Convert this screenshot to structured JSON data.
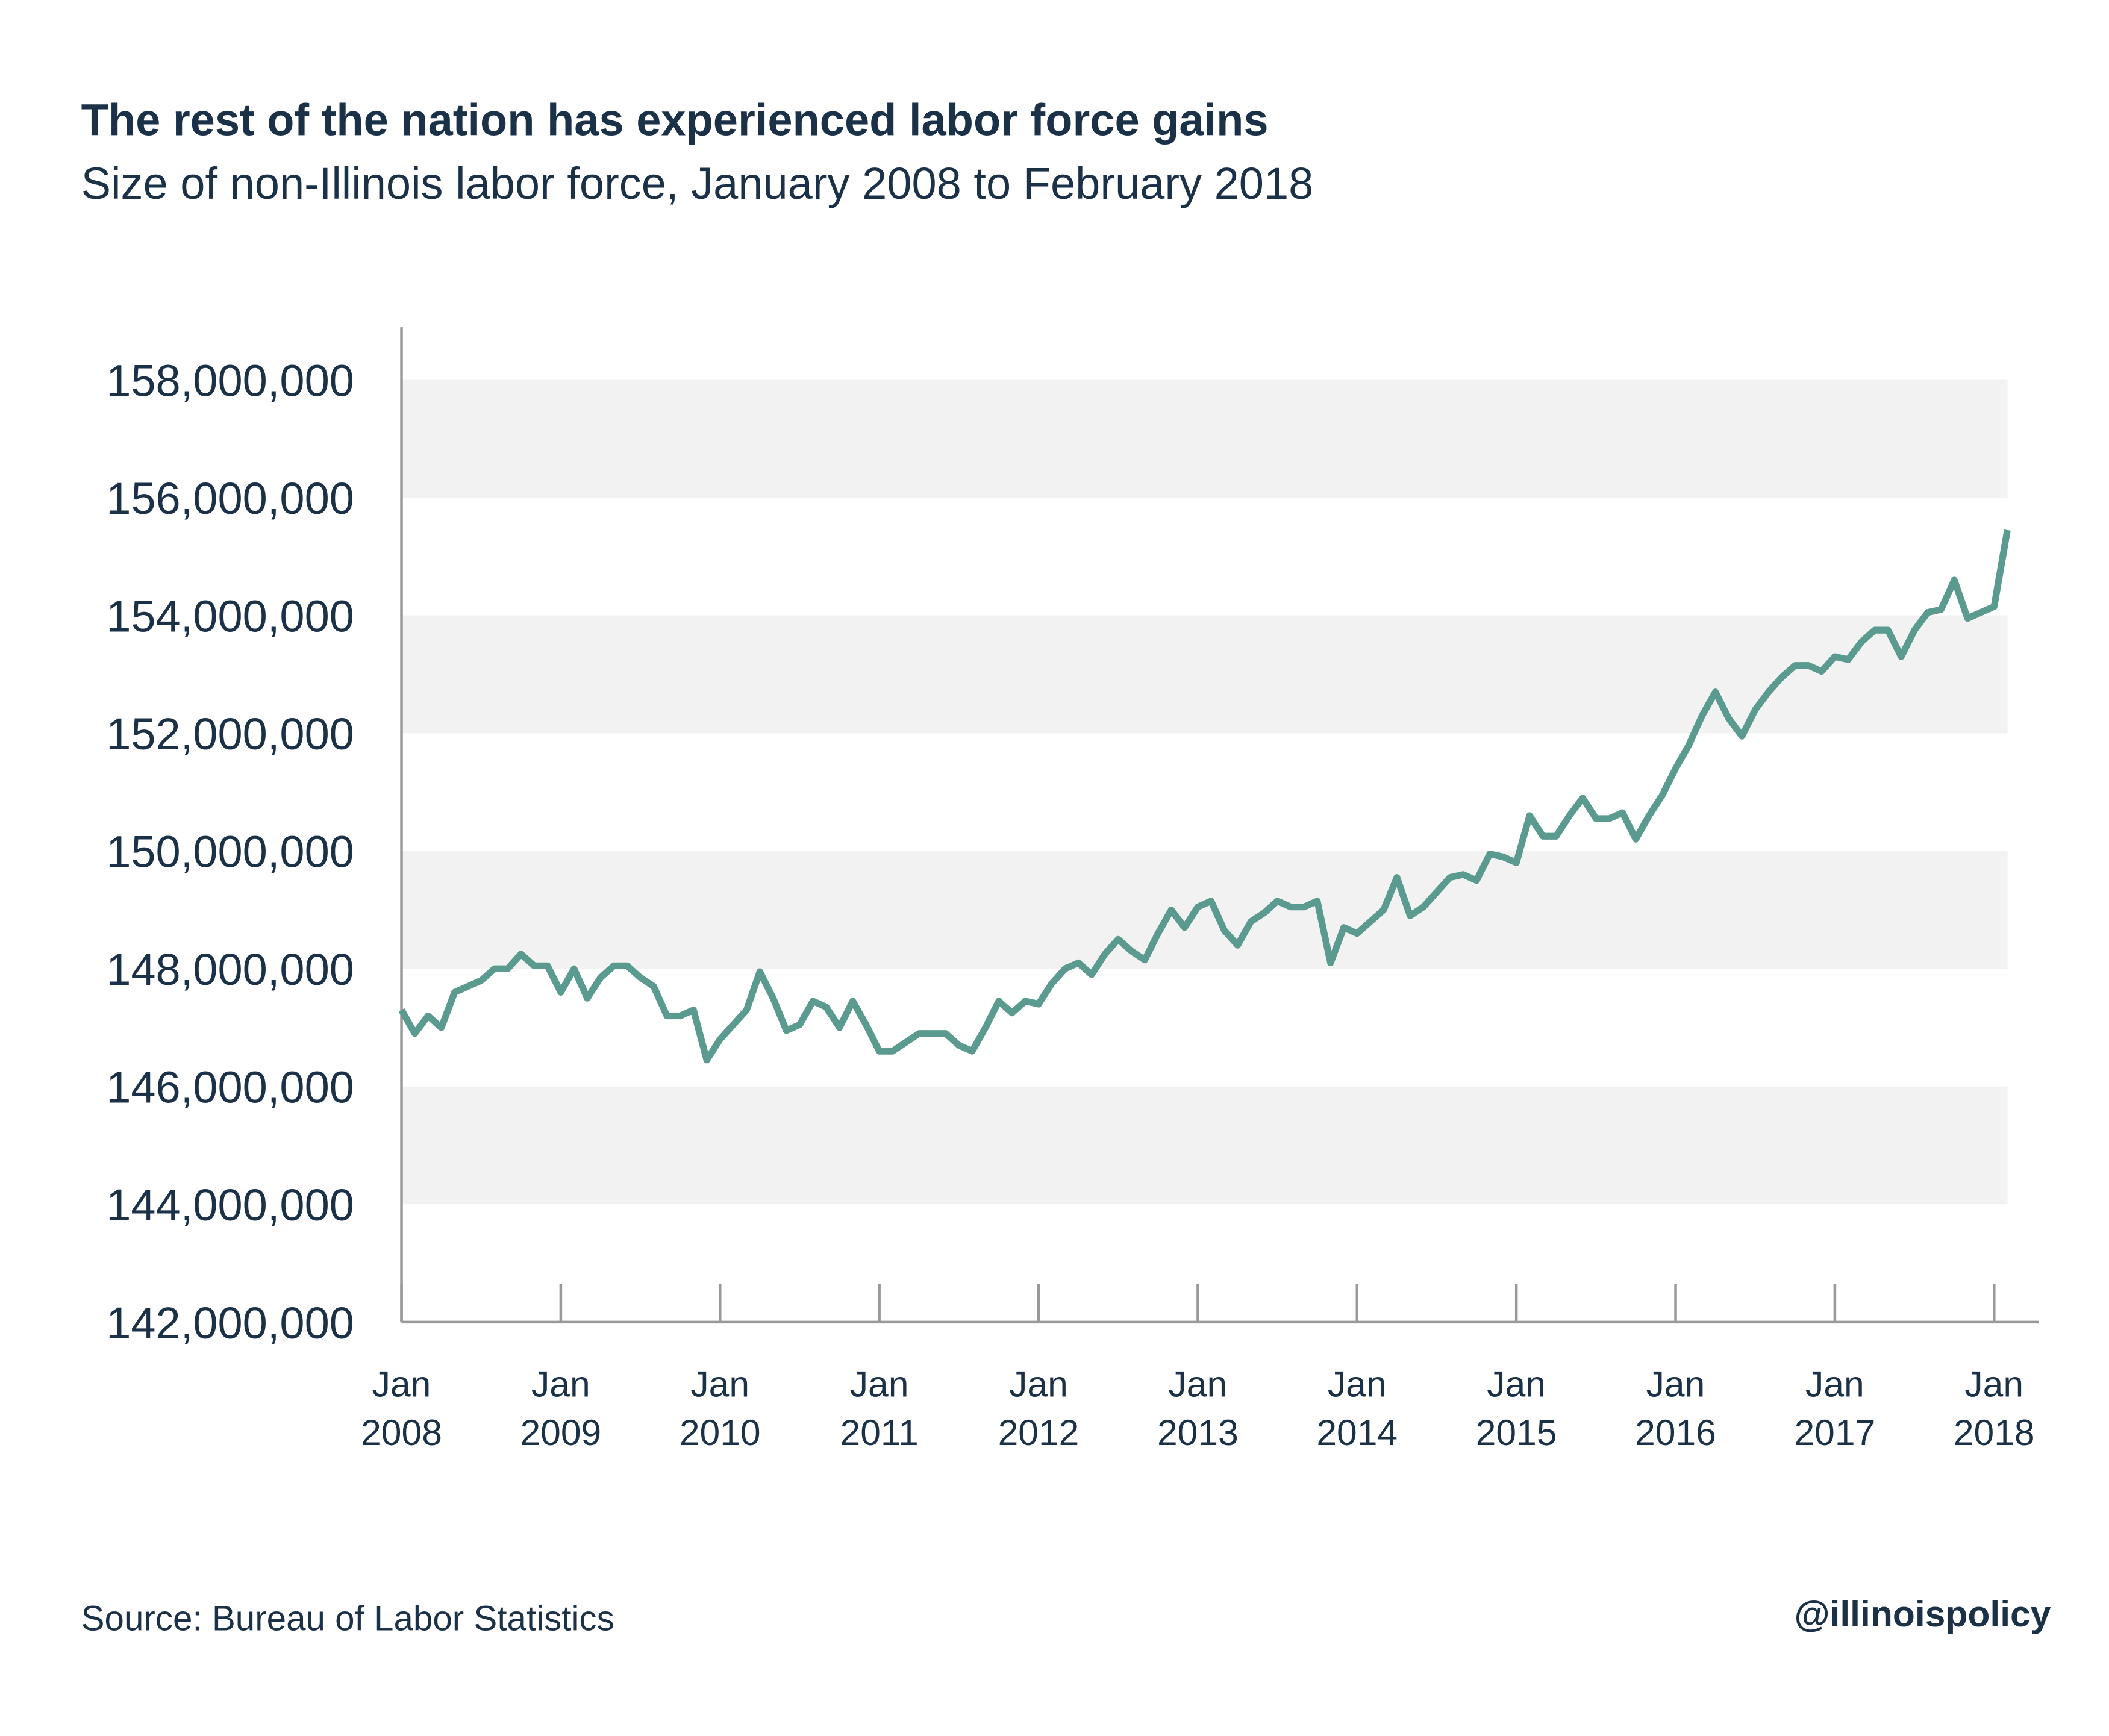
{
  "chart_data": {
    "type": "line",
    "title": "The rest of the nation has experienced labor force gains",
    "subtitle": "Size of non-Illinois labor force, January 2008 to February 2018",
    "source": "Source: Bureau of Labor Statistics",
    "credit": "@illinoispolicy",
    "x": [
      "2008-01",
      "2008-02",
      "2008-03",
      "2008-04",
      "2008-05",
      "2008-06",
      "2008-07",
      "2008-08",
      "2008-09",
      "2008-10",
      "2008-11",
      "2008-12",
      "2009-01",
      "2009-02",
      "2009-03",
      "2009-04",
      "2009-05",
      "2009-06",
      "2009-07",
      "2009-08",
      "2009-09",
      "2009-10",
      "2009-11",
      "2009-12",
      "2010-01",
      "2010-02",
      "2010-03",
      "2010-04",
      "2010-05",
      "2010-06",
      "2010-07",
      "2010-08",
      "2010-09",
      "2010-10",
      "2010-11",
      "2010-12",
      "2011-01",
      "2011-02",
      "2011-03",
      "2011-04",
      "2011-05",
      "2011-06",
      "2011-07",
      "2011-08",
      "2011-09",
      "2011-10",
      "2011-11",
      "2011-12",
      "2012-01",
      "2012-02",
      "2012-03",
      "2012-04",
      "2012-05",
      "2012-06",
      "2012-07",
      "2012-08",
      "2012-09",
      "2012-10",
      "2012-11",
      "2012-12",
      "2013-01",
      "2013-02",
      "2013-03",
      "2013-04",
      "2013-05",
      "2013-06",
      "2013-07",
      "2013-08",
      "2013-09",
      "2013-10",
      "2013-11",
      "2013-12",
      "2014-01",
      "2014-02",
      "2014-03",
      "2014-04",
      "2014-05",
      "2014-06",
      "2014-07",
      "2014-08",
      "2014-09",
      "2014-10",
      "2014-11",
      "2014-12",
      "2015-01",
      "2015-02",
      "2015-03",
      "2015-04",
      "2015-05",
      "2015-06",
      "2015-07",
      "2015-08",
      "2015-09",
      "2015-10",
      "2015-11",
      "2015-12",
      "2016-01",
      "2016-02",
      "2016-03",
      "2016-04",
      "2016-05",
      "2016-06",
      "2016-07",
      "2016-08",
      "2016-09",
      "2016-10",
      "2016-11",
      "2016-12",
      "2017-01",
      "2017-02",
      "2017-03",
      "2017-04",
      "2017-05",
      "2017-06",
      "2017-07",
      "2017-08",
      "2017-09",
      "2017-10",
      "2017-11",
      "2017-12",
      "2018-01",
      "2018-02"
    ],
    "series": [
      {
        "name": "Non-Illinois labor force",
        "color": "#5b9a8f",
        "values": [
          147300000,
          146900000,
          147200000,
          147000000,
          147600000,
          147700000,
          147800000,
          148000000,
          148000000,
          148250000,
          148050000,
          148050000,
          147600000,
          148000000,
          147500000,
          147850000,
          148050000,
          148050000,
          147850000,
          147700000,
          147200000,
          147200000,
          147300000,
          146450000,
          146800000,
          147050000,
          147300000,
          147950000,
          147500000,
          146950000,
          147050000,
          147450000,
          147350000,
          147000000,
          147450000,
          147050000,
          146600000,
          146600000,
          146750000,
          146900000,
          146900000,
          146900000,
          146700000,
          146600000,
          147000000,
          147450000,
          147250000,
          147450000,
          147400000,
          147750000,
          148000000,
          148100000,
          147900000,
          148250000,
          148500000,
          148300000,
          148150000,
          148600000,
          149000000,
          148700000,
          149050000,
          149150000,
          148650000,
          148400000,
          148800000,
          148950000,
          149150000,
          149050000,
          149050000,
          149150000,
          148100000,
          148700000,
          148600000,
          148800000,
          149000000,
          149550000,
          148900000,
          149050000,
          149300000,
          149550000,
          149600000,
          149500000,
          149950000,
          149900000,
          149800000,
          150600000,
          150250000,
          150250000,
          150600000,
          150900000,
          150550000,
          150550000,
          150650000,
          150200000,
          150600000,
          150950000,
          151400000,
          151800000,
          152300000,
          152700000,
          152250000,
          151950000,
          152400000,
          152700000,
          152950000,
          153150000,
          153150000,
          153050000,
          153300000,
          153250000,
          153550000,
          153750000,
          153750000,
          153300000,
          153750000,
          154050000,
          154100000,
          154600000,
          153950000,
          154050000,
          154150000,
          155450000
        ]
      }
    ],
    "ylim": [
      142000000,
      158000000
    ],
    "yticks": [
      {
        "value": 142000000,
        "label": "142,000,000"
      },
      {
        "value": 144000000,
        "label": "144,000,000"
      },
      {
        "value": 146000000,
        "label": "146,000,000"
      },
      {
        "value": 148000000,
        "label": "148,000,000"
      },
      {
        "value": 150000000,
        "label": "150,000,000"
      },
      {
        "value": 152000000,
        "label": "152,000,000"
      },
      {
        "value": 154000000,
        "label": "154,000,000"
      },
      {
        "value": 156000000,
        "label": "156,000,000"
      },
      {
        "value": 158000000,
        "label": "158,000,000"
      }
    ],
    "xticks": [
      {
        "value": "2008-01",
        "label": "Jan 2008"
      },
      {
        "value": "2009-01",
        "label": "Jan 2009"
      },
      {
        "value": "2010-01",
        "label": "Jan 2010"
      },
      {
        "value": "2011-01",
        "label": "Jan 2011"
      },
      {
        "value": "2012-01",
        "label": "Jan 2012"
      },
      {
        "value": "2013-01",
        "label": "Jan 2013"
      },
      {
        "value": "2014-01",
        "label": "Jan 2014"
      },
      {
        "value": "2015-01",
        "label": "Jan 2015"
      },
      {
        "value": "2016-01",
        "label": "Jan 2016"
      },
      {
        "value": "2017-01",
        "label": "Jan 2017"
      },
      {
        "value": "2018-01",
        "label": "Jan 2018"
      }
    ],
    "grid": "bands",
    "band_color": "#f2f2f2"
  }
}
